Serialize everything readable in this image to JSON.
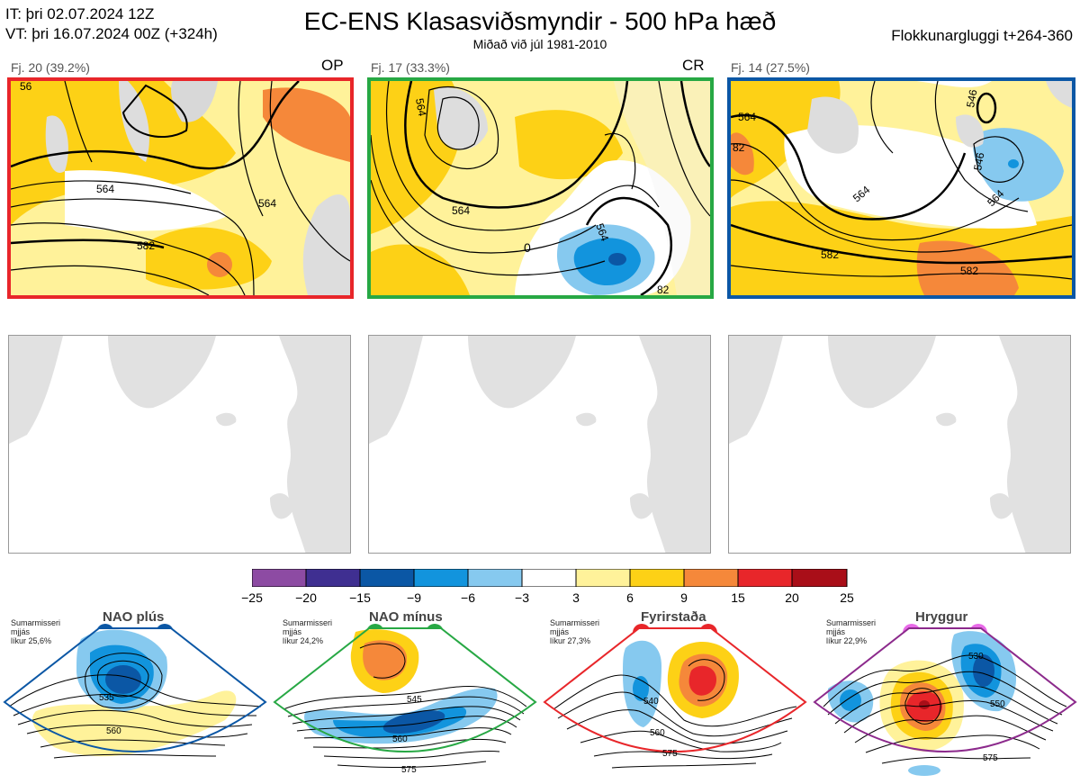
{
  "header": {
    "it_line": "IT: þri 02.07.2024 12Z",
    "vt_line": "VT: þri 16.07.2024 00Z  (+324h)",
    "title": "EC-ENS Klasasviðsmyndir - 500 hPa hæð",
    "subtitle": "Miðað við júl 1981-2010",
    "window": "Flokkunargluggi t+264-360"
  },
  "clusters": [
    {
      "label": "Fj. 20 (39.2%)",
      "tag": "OP",
      "border_color": "#e8262a",
      "contour_labels": [
        "564",
        "564",
        "582",
        "56"
      ]
    },
    {
      "label": "Fj. 17 (33.3%)",
      "tag": "CR",
      "border_color": "#27a844",
      "contour_labels": [
        "564",
        "564",
        "564",
        "0",
        "82"
      ]
    },
    {
      "label": "Fj. 14 (27.5%)",
      "tag": "",
      "border_color": "#0b57a5",
      "contour_labels": [
        "564",
        "564",
        "582",
        "582",
        "546",
        "546",
        "564",
        "82"
      ]
    }
  ],
  "colorbar": {
    "ticks": [
      "−25",
      "−20",
      "−15",
      "−9",
      "−6",
      "−3",
      "3",
      "6",
      "9",
      "15",
      "20",
      "25"
    ],
    "colors": [
      "#8d4ba3",
      "#3f2f91",
      "#0b57a5",
      "#1294dd",
      "#86c9ef",
      "#ffffff",
      "#fff29a",
      "#fdd116",
      "#f5883a",
      "#e8262a",
      "#a90e18"
    ]
  },
  "regimes": [
    {
      "name": "NAO plús",
      "note": [
        "Sumarmisseri",
        "mjjás",
        "líkur 25,6%"
      ],
      "dot_color": "#0b57a5",
      "border_color": "#0b57a5",
      "contour_labels": [
        "535",
        "560"
      ]
    },
    {
      "name": "NAO mínus",
      "note": [
        "Sumarmisseri",
        "mjjás",
        "líkur 24,2%"
      ],
      "dot_color": "#27a844",
      "border_color": "#27a844",
      "contour_labels": [
        "545",
        "560",
        "575"
      ]
    },
    {
      "name": "Fyrirstaða",
      "note": [
        "Sumarmisseri",
        "mjjás",
        "líkur 27,3%"
      ],
      "dot_color": "#e8262a",
      "border_color": "#e8262a",
      "contour_labels": [
        "540",
        "560",
        "575"
      ]
    },
    {
      "name": "Hryggur",
      "note": [
        "Sumarmisseri",
        "mjjás",
        "líkur 22,9%"
      ],
      "dot_color": "#e86ae8",
      "border_color": "#8c2a8c",
      "contour_labels": [
        "530",
        "550",
        "575"
      ]
    }
  ]
}
